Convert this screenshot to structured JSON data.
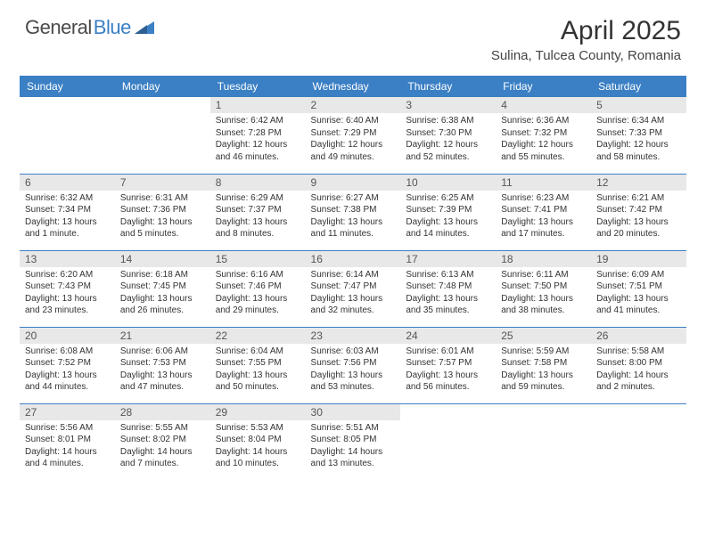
{
  "brand": {
    "part1": "General",
    "part2": "Blue"
  },
  "title": "April 2025",
  "location": "Sulina, Tulcea County, Romania",
  "colors": {
    "header_bg": "#3b7fc4",
    "header_text": "#ffffff",
    "daynum_bg": "#e8e8e8",
    "row_border": "#3b7fc4",
    "page_bg": "#ffffff",
    "text": "#333333"
  },
  "dayHeaders": [
    "Sunday",
    "Monday",
    "Tuesday",
    "Wednesday",
    "Thursday",
    "Friday",
    "Saturday"
  ],
  "weeks": [
    [
      {
        "empty": true
      },
      {
        "empty": true
      },
      {
        "num": "1",
        "sunrise": "Sunrise: 6:42 AM",
        "sunset": "Sunset: 7:28 PM",
        "daylight": "Daylight: 12 hours and 46 minutes."
      },
      {
        "num": "2",
        "sunrise": "Sunrise: 6:40 AM",
        "sunset": "Sunset: 7:29 PM",
        "daylight": "Daylight: 12 hours and 49 minutes."
      },
      {
        "num": "3",
        "sunrise": "Sunrise: 6:38 AM",
        "sunset": "Sunset: 7:30 PM",
        "daylight": "Daylight: 12 hours and 52 minutes."
      },
      {
        "num": "4",
        "sunrise": "Sunrise: 6:36 AM",
        "sunset": "Sunset: 7:32 PM",
        "daylight": "Daylight: 12 hours and 55 minutes."
      },
      {
        "num": "5",
        "sunrise": "Sunrise: 6:34 AM",
        "sunset": "Sunset: 7:33 PM",
        "daylight": "Daylight: 12 hours and 58 minutes."
      }
    ],
    [
      {
        "num": "6",
        "sunrise": "Sunrise: 6:32 AM",
        "sunset": "Sunset: 7:34 PM",
        "daylight": "Daylight: 13 hours and 1 minute."
      },
      {
        "num": "7",
        "sunrise": "Sunrise: 6:31 AM",
        "sunset": "Sunset: 7:36 PM",
        "daylight": "Daylight: 13 hours and 5 minutes."
      },
      {
        "num": "8",
        "sunrise": "Sunrise: 6:29 AM",
        "sunset": "Sunset: 7:37 PM",
        "daylight": "Daylight: 13 hours and 8 minutes."
      },
      {
        "num": "9",
        "sunrise": "Sunrise: 6:27 AM",
        "sunset": "Sunset: 7:38 PM",
        "daylight": "Daylight: 13 hours and 11 minutes."
      },
      {
        "num": "10",
        "sunrise": "Sunrise: 6:25 AM",
        "sunset": "Sunset: 7:39 PM",
        "daylight": "Daylight: 13 hours and 14 minutes."
      },
      {
        "num": "11",
        "sunrise": "Sunrise: 6:23 AM",
        "sunset": "Sunset: 7:41 PM",
        "daylight": "Daylight: 13 hours and 17 minutes."
      },
      {
        "num": "12",
        "sunrise": "Sunrise: 6:21 AM",
        "sunset": "Sunset: 7:42 PM",
        "daylight": "Daylight: 13 hours and 20 minutes."
      }
    ],
    [
      {
        "num": "13",
        "sunrise": "Sunrise: 6:20 AM",
        "sunset": "Sunset: 7:43 PM",
        "daylight": "Daylight: 13 hours and 23 minutes."
      },
      {
        "num": "14",
        "sunrise": "Sunrise: 6:18 AM",
        "sunset": "Sunset: 7:45 PM",
        "daylight": "Daylight: 13 hours and 26 minutes."
      },
      {
        "num": "15",
        "sunrise": "Sunrise: 6:16 AM",
        "sunset": "Sunset: 7:46 PM",
        "daylight": "Daylight: 13 hours and 29 minutes."
      },
      {
        "num": "16",
        "sunrise": "Sunrise: 6:14 AM",
        "sunset": "Sunset: 7:47 PM",
        "daylight": "Daylight: 13 hours and 32 minutes."
      },
      {
        "num": "17",
        "sunrise": "Sunrise: 6:13 AM",
        "sunset": "Sunset: 7:48 PM",
        "daylight": "Daylight: 13 hours and 35 minutes."
      },
      {
        "num": "18",
        "sunrise": "Sunrise: 6:11 AM",
        "sunset": "Sunset: 7:50 PM",
        "daylight": "Daylight: 13 hours and 38 minutes."
      },
      {
        "num": "19",
        "sunrise": "Sunrise: 6:09 AM",
        "sunset": "Sunset: 7:51 PM",
        "daylight": "Daylight: 13 hours and 41 minutes."
      }
    ],
    [
      {
        "num": "20",
        "sunrise": "Sunrise: 6:08 AM",
        "sunset": "Sunset: 7:52 PM",
        "daylight": "Daylight: 13 hours and 44 minutes."
      },
      {
        "num": "21",
        "sunrise": "Sunrise: 6:06 AM",
        "sunset": "Sunset: 7:53 PM",
        "daylight": "Daylight: 13 hours and 47 minutes."
      },
      {
        "num": "22",
        "sunrise": "Sunrise: 6:04 AM",
        "sunset": "Sunset: 7:55 PM",
        "daylight": "Daylight: 13 hours and 50 minutes."
      },
      {
        "num": "23",
        "sunrise": "Sunrise: 6:03 AM",
        "sunset": "Sunset: 7:56 PM",
        "daylight": "Daylight: 13 hours and 53 minutes."
      },
      {
        "num": "24",
        "sunrise": "Sunrise: 6:01 AM",
        "sunset": "Sunset: 7:57 PM",
        "daylight": "Daylight: 13 hours and 56 minutes."
      },
      {
        "num": "25",
        "sunrise": "Sunrise: 5:59 AM",
        "sunset": "Sunset: 7:58 PM",
        "daylight": "Daylight: 13 hours and 59 minutes."
      },
      {
        "num": "26",
        "sunrise": "Sunrise: 5:58 AM",
        "sunset": "Sunset: 8:00 PM",
        "daylight": "Daylight: 14 hours and 2 minutes."
      }
    ],
    [
      {
        "num": "27",
        "sunrise": "Sunrise: 5:56 AM",
        "sunset": "Sunset: 8:01 PM",
        "daylight": "Daylight: 14 hours and 4 minutes."
      },
      {
        "num": "28",
        "sunrise": "Sunrise: 5:55 AM",
        "sunset": "Sunset: 8:02 PM",
        "daylight": "Daylight: 14 hours and 7 minutes."
      },
      {
        "num": "29",
        "sunrise": "Sunrise: 5:53 AM",
        "sunset": "Sunset: 8:04 PM",
        "daylight": "Daylight: 14 hours and 10 minutes."
      },
      {
        "num": "30",
        "sunrise": "Sunrise: 5:51 AM",
        "sunset": "Sunset: 8:05 PM",
        "daylight": "Daylight: 14 hours and 13 minutes."
      },
      {
        "empty": true
      },
      {
        "empty": true
      },
      {
        "empty": true
      }
    ]
  ]
}
